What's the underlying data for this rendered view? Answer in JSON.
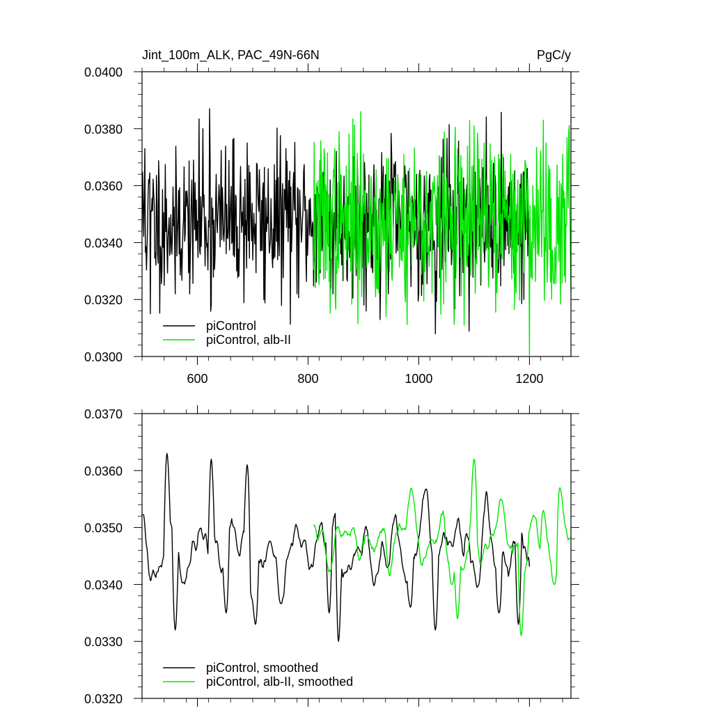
{
  "chart_data": [
    {
      "type": "line",
      "title_left": "Jint_100m_ALK, PAC_49N-66N",
      "title_right": "PgC/y",
      "xlim": [
        500,
        1275
      ],
      "ylim": [
        0.03,
        0.04
      ],
      "x_ticks": [
        600,
        800,
        1000,
        1200
      ],
      "x_tick_labels": [
        "600",
        "800",
        "1000",
        "1200"
      ],
      "y_ticks": [
        0.03,
        0.032,
        0.034,
        0.036,
        0.038,
        0.04
      ],
      "y_tick_labels": [
        "0.0300",
        "0.0320",
        "0.0340",
        "0.0360",
        "0.0380",
        "0.0400"
      ],
      "legend_position": "bottom-left",
      "series": [
        {
          "name": "piControl",
          "color": "#000000",
          "x_start": 500,
          "x_end": 1200,
          "mean": 0.0348,
          "amp": 0.0013,
          "noise": "raw",
          "seed": 11,
          "key_points": [
            [
              505,
              0.0373
            ],
            [
              515,
              0.0315
            ],
            [
              540,
              0.0325
            ],
            [
              560,
              0.0322
            ],
            [
              590,
              0.0362
            ],
            [
              610,
              0.038
            ],
            [
              622,
              0.0387
            ],
            [
              625,
              0.0318
            ],
            [
              690,
              0.0375
            ],
            [
              720,
              0.032
            ],
            [
              760,
              0.0373
            ],
            [
              780,
              0.0322
            ],
            [
              845,
              0.0322
            ],
            [
              945,
              0.0322
            ],
            [
              1030,
              0.0308
            ],
            [
              1190,
              0.032
            ]
          ]
        },
        {
          "name": "piControl, alb-II",
          "color": "#00e600",
          "x_start": 810,
          "x_end": 1275,
          "mean": 0.0347,
          "amp": 0.0015,
          "noise": "raw",
          "seed": 37,
          "key_points": [
            [
              895,
              0.0386
            ],
            [
              1065,
              0.0372
            ],
            [
              1082,
              0.0311
            ],
            [
              1100,
              0.0381
            ],
            [
              1152,
              0.0371
            ],
            [
              1175,
              0.0325
            ],
            [
              1225,
              0.0383
            ],
            [
              1240,
              0.032
            ],
            [
              1265,
              0.0326
            ]
          ]
        }
      ]
    },
    {
      "type": "line",
      "xlim": [
        500,
        1275
      ],
      "ylim": [
        0.032,
        0.037
      ],
      "x_ticks": [
        600,
        800,
        1000,
        1200
      ],
      "x_tick_labels": [
        "",
        "",
        "",
        ""
      ],
      "y_ticks": [
        0.032,
        0.033,
        0.034,
        0.035,
        0.036,
        0.037
      ],
      "y_tick_labels": [
        "0.0320",
        "0.0330",
        "0.0340",
        "0.0350",
        "0.0360",
        "0.0370"
      ],
      "legend_position": "bottom-left",
      "series": [
        {
          "name": "piControl, smoothed",
          "color": "#000000",
          "x_start": 500,
          "x_end": 1200,
          "mean": 0.03465,
          "amp": 0.00055,
          "noise": "smooth",
          "seed": 11,
          "key_points": [
            [
              545,
              0.0363
            ],
            [
              560,
              0.0332
            ],
            [
              625,
              0.0362
            ],
            [
              652,
              0.0335
            ],
            [
              690,
              0.0361
            ],
            [
              705,
              0.0333
            ],
            [
              838,
              0.0335
            ],
            [
              855,
              0.033
            ],
            [
              985,
              0.0336
            ],
            [
              1030,
              0.0332
            ],
            [
              1145,
              0.0335
            ],
            [
              1180,
              0.0333
            ]
          ]
        },
        {
          "name": "piControl, alb-II, smoothed",
          "color": "#00e600",
          "x_start": 810,
          "x_end": 1275,
          "mean": 0.0347,
          "amp": 0.0005,
          "noise": "smooth",
          "seed": 37,
          "key_points": [
            [
              1060,
              0.034
            ],
            [
              1070,
              0.0334
            ],
            [
              1100,
              0.0362
            ],
            [
              1185,
              0.0331
            ],
            [
              1225,
              0.0353
            ],
            [
              1255,
              0.0357
            ],
            [
              1245,
              0.034
            ]
          ]
        }
      ]
    }
  ]
}
